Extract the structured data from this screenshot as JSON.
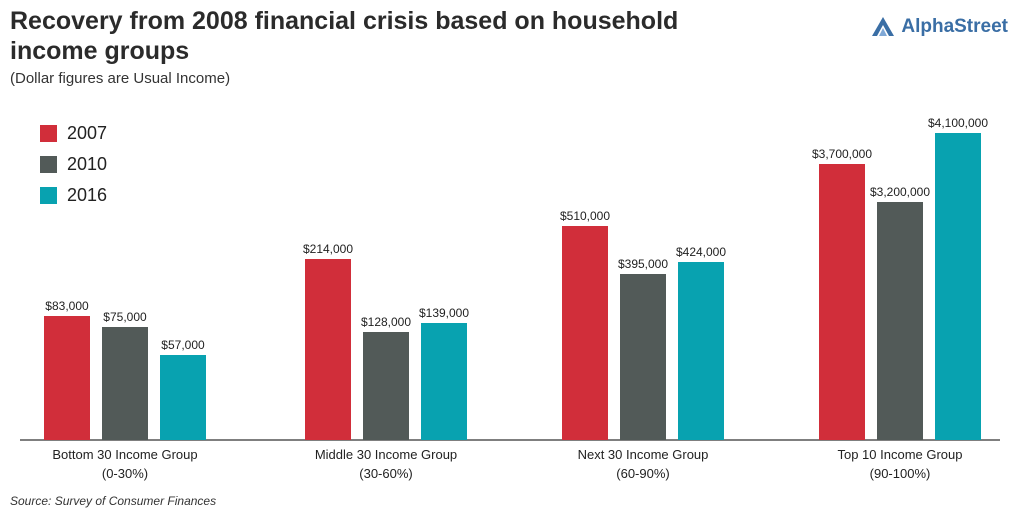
{
  "header": {
    "title": "Recovery from 2008 financial crisis based on household income groups",
    "subtitle": "(Dollar figures are Usual Income)",
    "brand": "AlphaStreet",
    "brand_icon": "alphastreet-logo-icon"
  },
  "source": "Source: Survey of Consumer Finances",
  "colors": {
    "2007": "#d12e3a",
    "2010": "#525a58",
    "2016": "#08a2b0",
    "brand": "#3a6ea5"
  },
  "chart_data": {
    "type": "bar",
    "title": "Recovery from 2008 financial crisis based on household income groups",
    "subtitle": "(Dollar figures are Usual Income)",
    "categories": [
      [
        "Bottom 30 Income Group",
        "(0-30%)"
      ],
      [
        "Middle 30 Income Group",
        "(30-60%)"
      ],
      [
        "Next 30 Income Group",
        "(60-90%)"
      ],
      [
        "Top 10 Income Group",
        "(90-100%)"
      ]
    ],
    "series": [
      {
        "name": "2007",
        "color": "#d12e3a",
        "values": [
          83000,
          214000,
          510000,
          3700000
        ],
        "labels": [
          "$83,000",
          "$214,000",
          "$510,000",
          "$3,700,000"
        ]
      },
      {
        "name": "2010",
        "color": "#525a58",
        "values": [
          75000,
          128000,
          395000,
          3200000
        ],
        "labels": [
          "$75,000",
          "$128,000",
          "$395,000",
          "$3,200,000"
        ]
      },
      {
        "name": "2016",
        "color": "#08a2b0",
        "values": [
          57000,
          139000,
          424000,
          4100000
        ],
        "labels": [
          "$57,000",
          "$139,000",
          "$424,000",
          "$4,100,000"
        ]
      }
    ],
    "scale_note": "each income group is drawn on its own scale",
    "legend_position": "top-left",
    "grid": false
  }
}
